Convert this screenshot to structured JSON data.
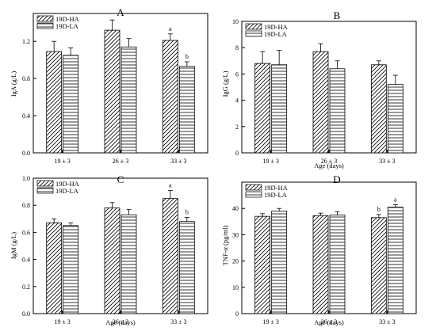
{
  "colors": {
    "axis": "#000000",
    "bar_fill": "#ffffff",
    "hatch": "#000000"
  },
  "chart_data": [
    {
      "panel": "A",
      "type": "bar",
      "categories": [
        "19 ± 3",
        "26 ± 3",
        "33 ± 3"
      ],
      "xlabel": "",
      "ylabel": "IgA (g/L)",
      "ylim": [
        0,
        1.5
      ],
      "yticks": [
        "0.0",
        "0.4",
        "0.8",
        "1.2"
      ],
      "legend_position": "top-left",
      "series": [
        {
          "name": "19D-HA",
          "pattern": "diagonal",
          "values": [
            1.09,
            1.32,
            1.21
          ],
          "errors": [
            0.11,
            0.11,
            0.07
          ],
          "labels": [
            "",
            "",
            "a"
          ]
        },
        {
          "name": "19D-LA",
          "pattern": "horizontal",
          "values": [
            1.05,
            1.14,
            0.93
          ],
          "errors": [
            0.08,
            0.09,
            0.05
          ],
          "labels": [
            "",
            "",
            "b"
          ]
        }
      ]
    },
    {
      "panel": "B",
      "type": "bar",
      "categories": [
        "19 ± 3",
        "26 ± 3",
        "33 ± 3"
      ],
      "xlabel": "Age (days)",
      "ylabel": "IgG (g/L)",
      "ylim": [
        0,
        10
      ],
      "yticks": [
        "0",
        "2",
        "4",
        "6",
        "8",
        "10"
      ],
      "legend_position": "top-left",
      "series": [
        {
          "name": "19D-HA",
          "pattern": "diagonal",
          "values": [
            6.8,
            7.7,
            6.7
          ],
          "errors": [
            0.9,
            0.6,
            0.3
          ],
          "labels": [
            "",
            "",
            ""
          ]
        },
        {
          "name": "19D-LA",
          "pattern": "horizontal",
          "values": [
            6.7,
            6.4,
            5.2
          ],
          "errors": [
            1.1,
            0.6,
            0.7
          ],
          "labels": [
            "",
            "",
            ""
          ]
        }
      ]
    },
    {
      "panel": "C",
      "type": "bar",
      "categories": [
        "19 ± 3",
        "26 ± 3",
        "33 ± 3"
      ],
      "xlabel": "Age (days)",
      "ylabel": "IgM (g/L)",
      "ylim": [
        0,
        1.0
      ],
      "yticks": [
        "0.0",
        "0.2",
        "0.4",
        "0.6",
        "0.8",
        "1.0"
      ],
      "legend_position": "top-left",
      "series": [
        {
          "name": "19D-HA",
          "pattern": "diagonal",
          "values": [
            0.67,
            0.78,
            0.85
          ],
          "errors": [
            0.03,
            0.04,
            0.06
          ],
          "labels": [
            "",
            "",
            "a"
          ]
        },
        {
          "name": "19D-LA",
          "pattern": "horizontal",
          "values": [
            0.65,
            0.73,
            0.68
          ],
          "errors": [
            0.02,
            0.04,
            0.03
          ],
          "labels": [
            "",
            "",
            "b"
          ]
        }
      ]
    },
    {
      "panel": "D",
      "type": "bar",
      "categories": [
        "19 ± 3",
        "26 ± 3",
        "33 ± 3"
      ],
      "xlabel": "Age (days)",
      "ylabel": "TNF-α (pg/ml)",
      "ylim": [
        0,
        50
      ],
      "yticks": [
        "0",
        "10",
        "20",
        "30",
        "40"
      ],
      "legend_position": "top-left",
      "series": [
        {
          "name": "19D-HA",
          "pattern": "diagonal",
          "values": [
            37.0,
            37.3,
            36.5
          ],
          "errors": [
            1.0,
            0.9,
            1.2
          ],
          "labels": [
            "",
            "",
            "b"
          ]
        },
        {
          "name": "19D-LA",
          "pattern": "horizontal",
          "values": [
            39.0,
            37.5,
            40.5
          ],
          "errors": [
            1.0,
            1.2,
            0.9
          ],
          "labels": [
            "",
            "",
            "a"
          ]
        }
      ]
    }
  ]
}
